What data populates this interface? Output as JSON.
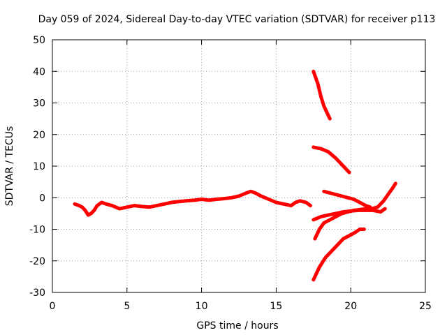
{
  "chart_data": {
    "type": "line",
    "title": "Day 059 of 2024, Sidereal Day-to-day VTEC variation (SDTVAR) for receiver p113",
    "xlabel": "GPS time / hours",
    "ylabel": "SDTVAR / TECUs",
    "xlim": [
      0,
      25
    ],
    "ylim": [
      -30,
      50
    ],
    "xticks": [
      "0",
      "5",
      "10",
      "15",
      "20",
      "25"
    ],
    "yticks": [
      "-30",
      "-20",
      "-10",
      "0",
      "10",
      "20",
      "30",
      "40",
      "50"
    ],
    "grid": true,
    "color": "#ff0000",
    "series": [
      {
        "x": [
          1.5,
          1.8,
          2.0,
          2.2,
          2.4,
          2.6,
          2.8,
          3.0,
          3.3,
          3.6,
          4.0,
          4.5,
          5.0,
          5.5,
          6.0,
          6.5,
          7.0,
          7.5,
          8.0,
          8.5,
          9.0,
          9.5,
          10.0,
          10.5,
          11.0,
          11.5,
          12.0,
          12.5,
          13.0,
          13.3,
          13.6,
          14.0,
          14.5,
          15.0,
          15.5,
          16.0,
          16.3,
          16.6,
          17.0,
          17.3
        ],
        "y": [
          -2,
          -2.5,
          -3,
          -4,
          -5.5,
          -5,
          -4,
          -2.5,
          -1.5,
          -2,
          -2.5,
          -3.5,
          -3,
          -2.5,
          -2.8,
          -3,
          -2.5,
          -2,
          -1.5,
          -1.2,
          -1,
          -0.8,
          -0.5,
          -0.8,
          -0.5,
          -0.3,
          0,
          0.5,
          1.5,
          2,
          1.5,
          0.5,
          -0.5,
          -1.5,
          -2,
          -2.5,
          -1.5,
          -1,
          -1.5,
          -2.5
        ]
      },
      {
        "x": [
          17.5,
          17.8,
          18.0,
          18.2,
          18.4,
          18.6
        ],
        "y": [
          40,
          36,
          32,
          29,
          27,
          25
        ]
      },
      {
        "x": [
          17.5,
          18.0,
          18.5,
          19.0,
          19.5,
          19.9
        ],
        "y": [
          16,
          15.5,
          14.5,
          12.5,
          10,
          8
        ]
      },
      {
        "x": [
          17.5,
          17.9,
          18.3,
          18.7,
          19.1,
          19.5,
          19.9,
          20.3,
          20.6,
          20.9
        ],
        "y": [
          -26,
          -22,
          -19,
          -17,
          -15,
          -13,
          -12,
          -11,
          -10,
          -10
        ]
      },
      {
        "x": [
          17.6,
          17.9,
          18.2,
          18.6,
          19.0,
          19.4,
          19.8,
          20.2,
          20.6,
          21.0,
          21.4,
          21.8,
          22.2,
          22.5,
          22.8,
          23.0
        ],
        "y": [
          -13,
          -10,
          -8,
          -7,
          -6,
          -5,
          -4.5,
          -4,
          -3.8,
          -3.5,
          -3.5,
          -3,
          -1,
          1,
          3,
          4.5
        ]
      },
      {
        "x": [
          17.5,
          18.0,
          18.5,
          19.0,
          19.5,
          20.0,
          20.5,
          21.0,
          21.5,
          22.0,
          22.3
        ],
        "y": [
          -7,
          -6,
          -5.5,
          -5,
          -4.5,
          -4.2,
          -4,
          -4,
          -4,
          -4.5,
          -3.5
        ]
      },
      {
        "x": [
          18.2,
          18.6,
          19.0,
          19.4,
          19.8,
          20.2,
          20.6,
          21.0,
          21.3
        ],
        "y": [
          2,
          1.5,
          1,
          0.5,
          0,
          -0.5,
          -1.5,
          -2.5,
          -3
        ]
      }
    ]
  }
}
